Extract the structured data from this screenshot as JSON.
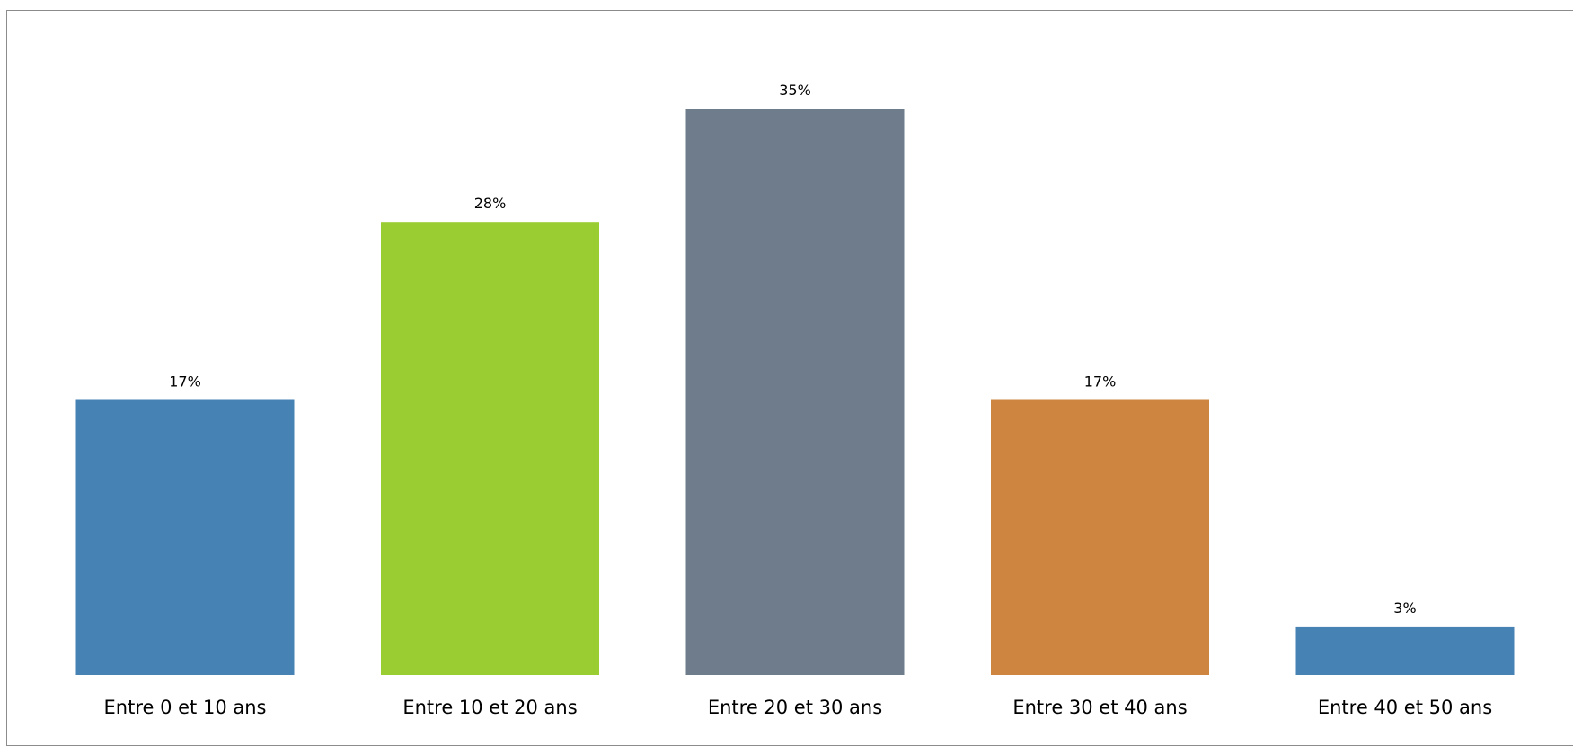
{
  "chart_data": {
    "type": "bar",
    "categories": [
      "Entre 0 et 10 ans",
      "Entre 10 et 20 ans",
      "Entre 20 et 30 ans",
      "Entre 30 et 40 ans",
      "Entre 40 et 50 ans"
    ],
    "values": [
      17,
      28,
      35,
      17,
      3
    ],
    "value_labels": [
      "17%",
      "28%",
      "35%",
      "17%",
      "3%"
    ],
    "colors": [
      "#4682B4",
      "#9ACD32",
      "#6E7C8B",
      "#CD853F",
      "#4682B4"
    ],
    "title": "",
    "xlabel": "",
    "ylabel": "",
    "ylim": [
      0,
      35
    ],
    "grid": false,
    "legend": "none"
  }
}
